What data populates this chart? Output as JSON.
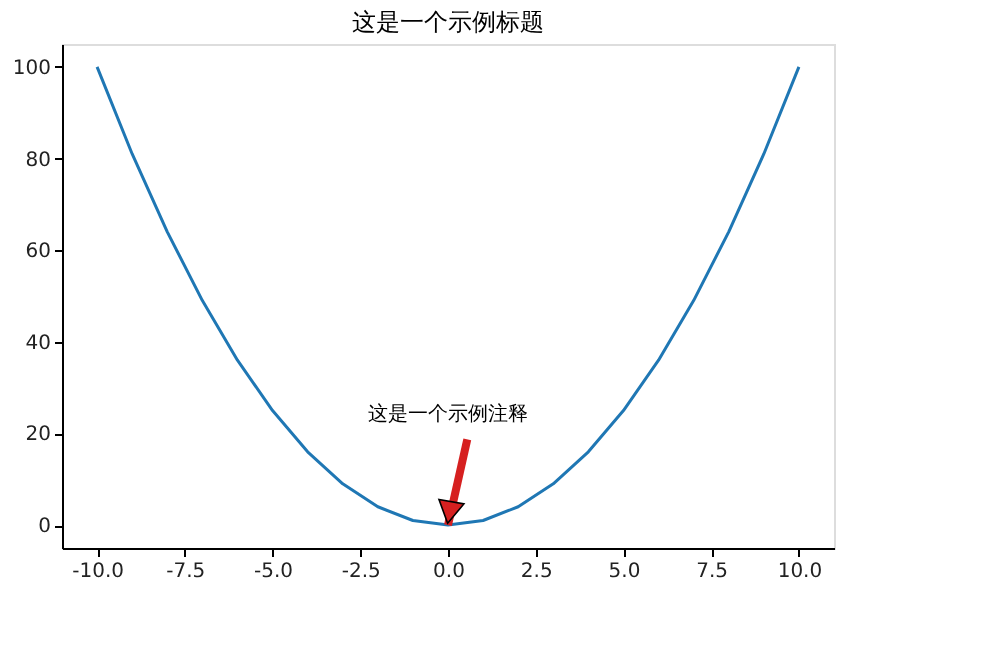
{
  "chart_data": {
    "type": "line",
    "title": "这是一个示例标题",
    "x": [
      -10,
      -9,
      -8,
      -7,
      -6,
      -5,
      -4,
      -3,
      -2,
      -1,
      0,
      1,
      2,
      3,
      4,
      5,
      6,
      7,
      8,
      9,
      10
    ],
    "series": [
      {
        "color": "#1f77b4",
        "values": [
          100,
          81,
          64,
          49,
          36,
          25,
          16,
          9,
          4,
          1,
          0,
          1,
          4,
          9,
          16,
          25,
          36,
          49,
          64,
          81,
          100
        ]
      }
    ],
    "xlim": [
      -11,
      11
    ],
    "ylim": [
      -5,
      105
    ],
    "xticks": [
      {
        "value": -10,
        "label": "-10.0"
      },
      {
        "value": -7.5,
        "label": "-7.5"
      },
      {
        "value": -5,
        "label": "-5.0"
      },
      {
        "value": -2.5,
        "label": "-2.5"
      },
      {
        "value": 0,
        "label": "0.0"
      },
      {
        "value": 2.5,
        "label": "2.5"
      },
      {
        "value": 5,
        "label": "5.0"
      },
      {
        "value": 7.5,
        "label": "7.5"
      },
      {
        "value": 10,
        "label": "10.0"
      }
    ],
    "yticks": [
      0,
      20,
      40,
      60,
      80,
      100
    ],
    "grid": false,
    "marker": "none",
    "line_style": "solid",
    "annotations": [
      {
        "text": "这是一个示例注释",
        "x": 0,
        "y": 0
      }
    ]
  }
}
